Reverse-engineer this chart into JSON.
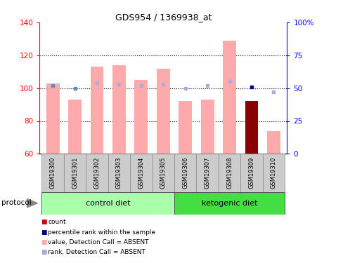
{
  "title": "GDS954 / 1369938_at",
  "samples": [
    "GSM19300",
    "GSM19301",
    "GSM19302",
    "GSM19303",
    "GSM19304",
    "GSM19305",
    "GSM19306",
    "GSM19307",
    "GSM19308",
    "GSM19309",
    "GSM19310"
  ],
  "values": [
    103,
    93,
    113,
    114,
    105,
    112,
    92,
    93,
    129,
    92,
    74
  ],
  "ranks": [
    52,
    50,
    54,
    53,
    52,
    53,
    50,
    52,
    55,
    51,
    47
  ],
  "bar_colors": [
    "#ffaaaa",
    "#ffaaaa",
    "#ffaaaa",
    "#ffaaaa",
    "#ffaaaa",
    "#ffaaaa",
    "#ffaaaa",
    "#ffaaaa",
    "#ffaaaa",
    "#8b0000",
    "#ffaaaa"
  ],
  "rank_colors": [
    "#6688cc",
    "#6688cc",
    "#aaaadd",
    "#aaaadd",
    "#aaaadd",
    "#aaaadd",
    "#aaaadd",
    "#aaaadd",
    "#aaaadd",
    "#00008b",
    "#aaaadd"
  ],
  "ylim_left": [
    60,
    140
  ],
  "ylim_right": [
    0,
    100
  ],
  "yticks_left": [
    60,
    80,
    100,
    120,
    140
  ],
  "yticks_right": [
    0,
    25,
    50,
    75,
    100
  ],
  "left_tick_labels": [
    "60",
    "80",
    "100",
    "120",
    "140"
  ],
  "right_tick_labels": [
    "0",
    "25",
    "50",
    "75",
    "100%"
  ],
  "control_group_label": "control diet",
  "ketogenic_group_label": "ketogenic diet",
  "protocol_label": "protocol",
  "legend_items": [
    {
      "label": "count",
      "color": "#cc0000"
    },
    {
      "label": "percentile rank within the sample",
      "color": "#00008b"
    },
    {
      "label": "value, Detection Call = ABSENT",
      "color": "#ffaaaa"
    },
    {
      "label": "rank, Detection Call = ABSENT",
      "color": "#aaaadd"
    }
  ],
  "control_bg": "#aaffaa",
  "ketogenic_bg": "#44dd44",
  "header_bg": "#cccccc",
  "bar_width": 0.6,
  "n_control": 6,
  "n_ketogenic": 5
}
